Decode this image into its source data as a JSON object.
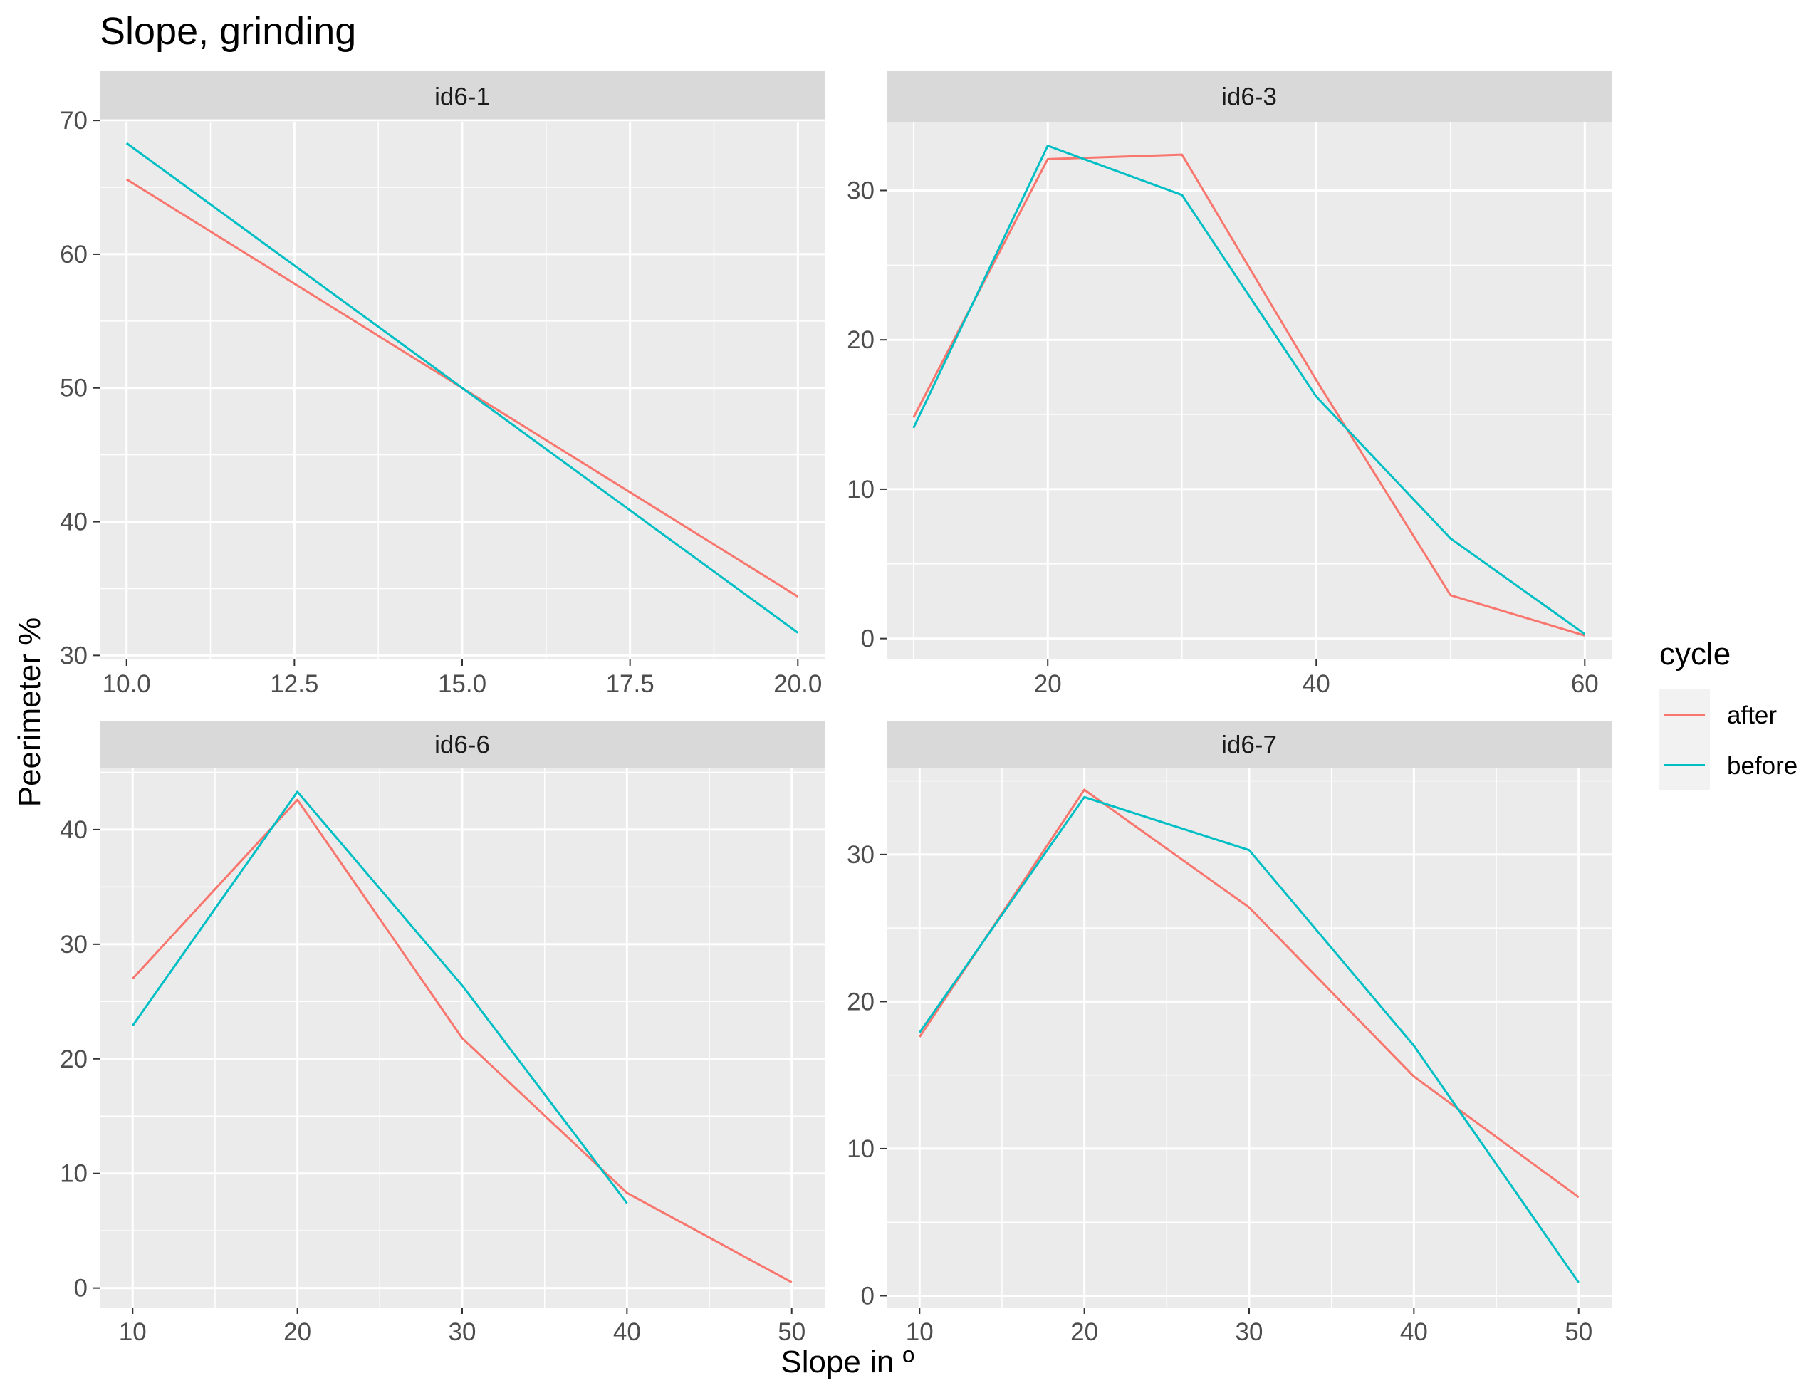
{
  "chart_data": {
    "type": "line",
    "title": "Slope, grinding",
    "xlabel": "Slope in º",
    "ylabel": "Peerimeter %",
    "grid": true,
    "legend": {
      "title": "cycle",
      "position": "right",
      "entries": [
        {
          "name": "after",
          "color": "#F8766D"
        },
        {
          "name": "before",
          "color": "#00BFC4"
        }
      ]
    },
    "panels": [
      {
        "label": "id6-1",
        "xlim": [
          9.6,
          20.4
        ],
        "ylim": [
          29.7,
          69.9
        ],
        "x_ticks": [
          10,
          12.5,
          15,
          17.5,
          20
        ],
        "x_tick_labels": [
          "10.0",
          "12.5",
          "15.0",
          "17.5",
          "20.0"
        ],
        "y_ticks": [
          30,
          40,
          50,
          60,
          70
        ],
        "y_tick_labels": [
          "30",
          "40",
          "50",
          "60",
          "70"
        ],
        "series": [
          {
            "name": "after",
            "x": [
              10,
              20
            ],
            "y": [
              65.6,
              34.4
            ]
          },
          {
            "name": "before",
            "x": [
              10,
              20
            ],
            "y": [
              68.3,
              31.7
            ]
          }
        ]
      },
      {
        "label": "id6-3",
        "xlim": [
          8,
          62
        ],
        "ylim": [
          -1.4,
          34.6
        ],
        "x_ticks": [
          20,
          40,
          60
        ],
        "x_tick_labels": [
          "20",
          "40",
          "60"
        ],
        "y_ticks": [
          0,
          10,
          20,
          30
        ],
        "y_tick_labels": [
          "0",
          "10",
          "20",
          "30"
        ],
        "series": [
          {
            "name": "after",
            "x": [
              10,
              20,
              30,
              40,
              50,
              60
            ],
            "y": [
              14.8,
              32.1,
              32.4,
              17.3,
              2.9,
              0.2
            ]
          },
          {
            "name": "before",
            "x": [
              10,
              20,
              30,
              40,
              50,
              60
            ],
            "y": [
              14.1,
              33.0,
              29.7,
              16.2,
              6.7,
              0.3
            ]
          }
        ]
      },
      {
        "label": "id6-6",
        "xlim": [
          8,
          52
        ],
        "ylim": [
          -1.7,
          45.4
        ],
        "x_ticks": [
          10,
          20,
          30,
          40,
          50
        ],
        "x_tick_labels": [
          "10",
          "20",
          "30",
          "40",
          "50"
        ],
        "y_ticks": [
          0,
          10,
          20,
          30,
          40
        ],
        "y_tick_labels": [
          "0",
          "10",
          "20",
          "30",
          "40"
        ],
        "series": [
          {
            "name": "after",
            "x": [
              10,
              20,
              30,
              40,
              50
            ],
            "y": [
              27.0,
              42.6,
              21.8,
              8.3,
              0.5
            ]
          },
          {
            "name": "before",
            "x": [
              10,
              20,
              30,
              40
            ],
            "y": [
              22.9,
              43.3,
              26.4,
              7.4
            ]
          }
        ]
      },
      {
        "label": "id6-7",
        "xlim": [
          8,
          52
        ],
        "ylim": [
          -0.8,
          35.9
        ],
        "x_ticks": [
          10,
          20,
          30,
          40,
          50
        ],
        "x_tick_labels": [
          "10",
          "20",
          "30",
          "40",
          "50"
        ],
        "y_ticks": [
          0,
          10,
          20,
          30
        ],
        "y_tick_labels": [
          "0",
          "10",
          "20",
          "30"
        ],
        "series": [
          {
            "name": "after",
            "x": [
              10,
              20,
              30,
              40,
              50
            ],
            "y": [
              17.6,
              34.4,
              26.4,
              14.9,
              6.7
            ]
          },
          {
            "name": "before",
            "x": [
              10,
              20,
              30,
              40,
              50
            ],
            "y": [
              17.9,
              33.9,
              30.3,
              17.0,
              0.9
            ]
          }
        ]
      }
    ]
  }
}
